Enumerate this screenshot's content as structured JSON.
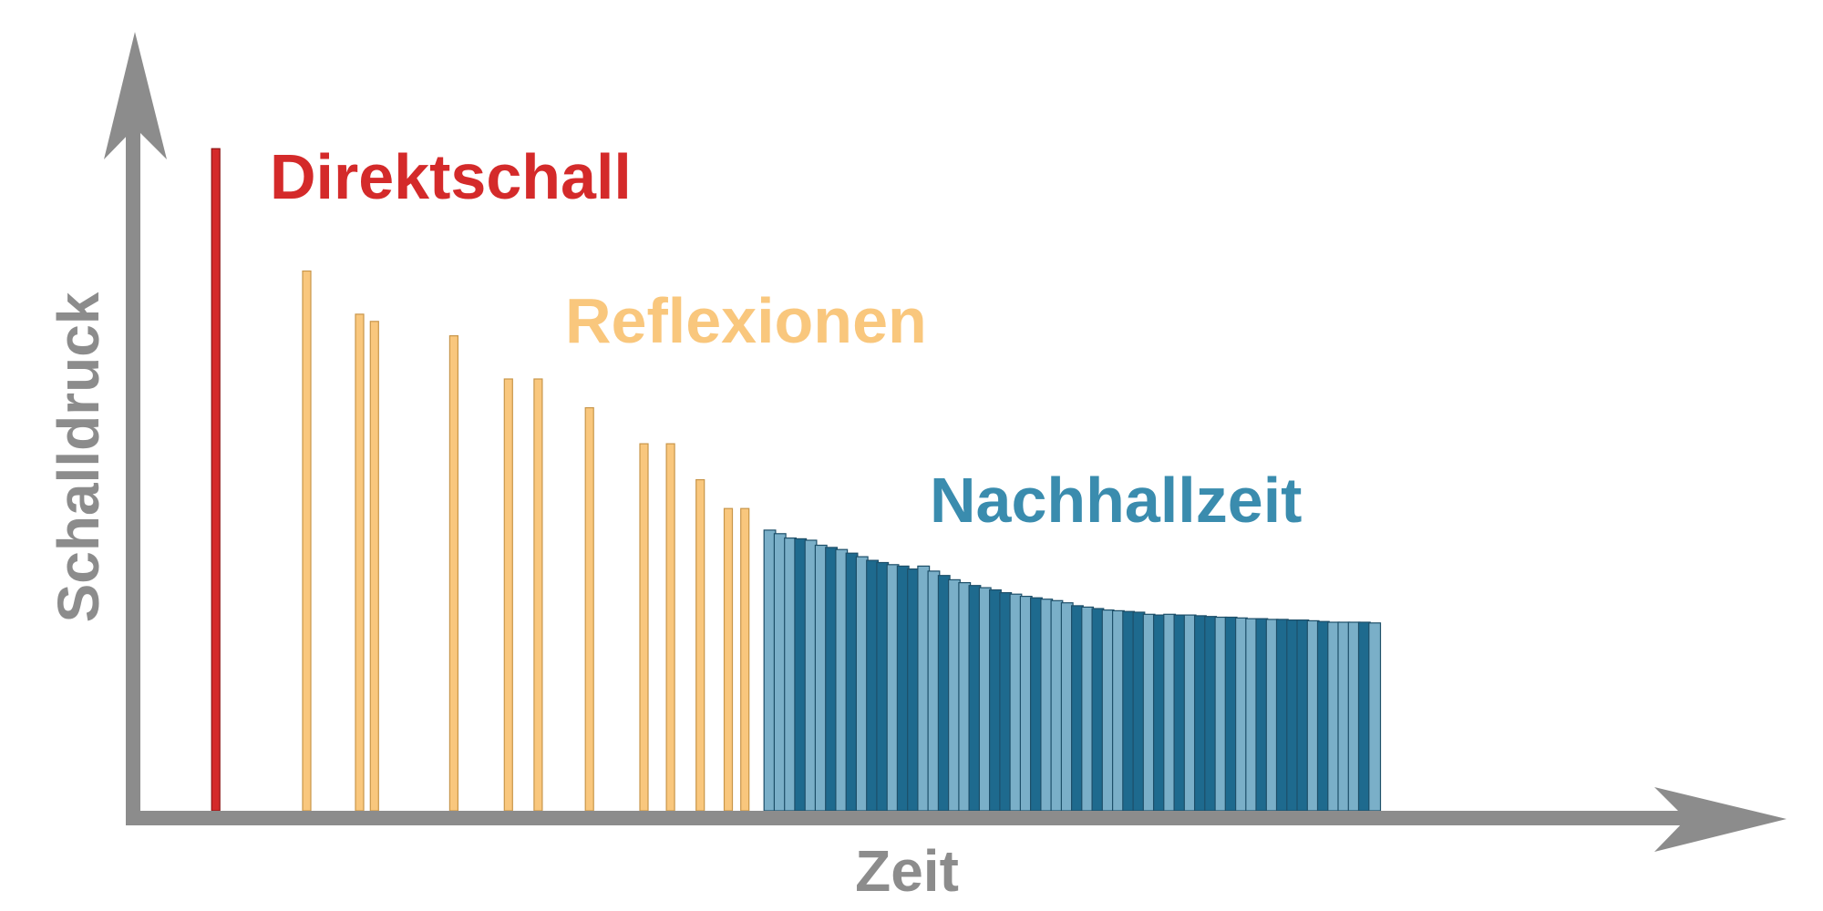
{
  "chart_data": {
    "type": "bar",
    "xlabel": "Zeit",
    "ylabel": "Schalldruck",
    "grid": false,
    "legend": "none",
    "xlim": [
      0,
      100
    ],
    "ylim": [
      0,
      100
    ],
    "colors": {
      "axis": "#8c8c8c",
      "direct": "#d42a2a",
      "reflection_fill": "#f9c77d",
      "reflection_stroke": "#c8964a",
      "reverb_light": "#7aafc8",
      "reverb_dark": "#1e6a8e",
      "reverb_stroke": "#1d4f69"
    },
    "series": [
      {
        "name": "Direktschall",
        "x": [
          5.0
        ],
        "values": [
          92
        ]
      },
      {
        "name": "Reflexionen",
        "x": [
          10.5,
          13.7,
          14.6,
          19.4,
          22.7,
          24.5,
          27.6,
          30.9,
          32.5,
          34.3,
          36.0,
          37.0
        ],
        "values": [
          75,
          69,
          68,
          66,
          60,
          60,
          56,
          51,
          51,
          46,
          42,
          42
        ]
      },
      {
        "name": "Nachhallzeit",
        "x_start": 38.2,
        "x_end": 75.4,
        "values": [
          39,
          38.5,
          37.9,
          37.8,
          37.6,
          36.9,
          36.6,
          36.3,
          35.8,
          35.3,
          34.8,
          34.5,
          34.2,
          34.0,
          33.6,
          34.0,
          33.3,
          32.7,
          32.1,
          31.7,
          31.3,
          31.0,
          30.7,
          30.3,
          30.1,
          29.8,
          29.6,
          29.4,
          29.2,
          28.9,
          28.5,
          28.3,
          28.1,
          27.9,
          27.8,
          27.7,
          27.6,
          27.3,
          27.2,
          27.3,
          27.2,
          27.2,
          27.1,
          27.0,
          26.9,
          26.9,
          26.8,
          26.7,
          26.7,
          26.6,
          26.6,
          26.5,
          26.5,
          26.4,
          26.3,
          26.2,
          26.2,
          26.2,
          26.2,
          26.1
        ]
      }
    ]
  }
}
